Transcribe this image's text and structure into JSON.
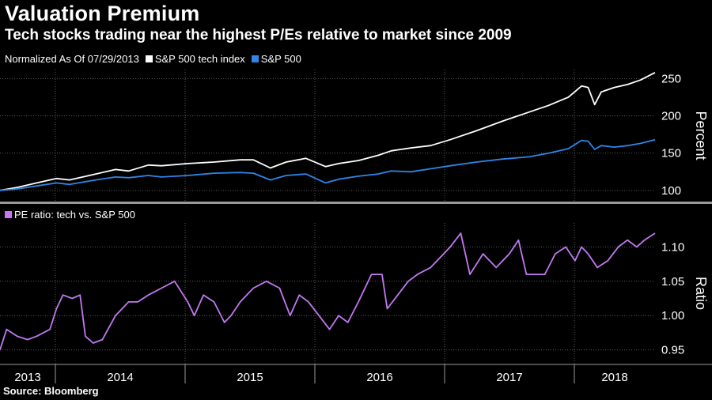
{
  "title": "Valuation Premium",
  "subtitle": "Tech stocks trading near the highest P/Es relative to market since 2009",
  "top_legend": {
    "note": "Normalized As Of 07/29/2013",
    "items": [
      {
        "label": "S&P 500 tech index",
        "color": "#ffffff"
      },
      {
        "label": "S&P 500",
        "color": "#2e86e8"
      }
    ]
  },
  "bottom_legend": {
    "items": [
      {
        "label": "PE ratio: tech vs. S&P 500",
        "color": "#c279f2"
      }
    ]
  },
  "source": "Source: Bloomberg",
  "chart_data": [
    {
      "type": "line",
      "ylabel": "Percent",
      "ylim": [
        85,
        262
      ],
      "yticks": [
        100,
        150,
        200,
        250
      ],
      "x_range": [
        2013.57,
        2018.56
      ],
      "grid": true,
      "series": [
        {
          "name": "S&P 500 tech index",
          "color": "#ffffff",
          "points": [
            [
              2013.57,
              100
            ],
            [
              2013.7,
              104
            ],
            [
              2013.85,
              110
            ],
            [
              2014.0,
              116
            ],
            [
              2014.1,
              114
            ],
            [
              2014.3,
              122
            ],
            [
              2014.45,
              128
            ],
            [
              2014.55,
              126
            ],
            [
              2014.7,
              134
            ],
            [
              2014.8,
              133
            ],
            [
              2015.0,
              136
            ],
            [
              2015.2,
              138
            ],
            [
              2015.4,
              141
            ],
            [
              2015.5,
              141
            ],
            [
              2015.63,
              130
            ],
            [
              2015.75,
              138
            ],
            [
              2015.9,
              143
            ],
            [
              2016.05,
              132
            ],
            [
              2016.15,
              136
            ],
            [
              2016.3,
              140
            ],
            [
              2016.45,
              147
            ],
            [
              2016.55,
              153
            ],
            [
              2016.7,
              157
            ],
            [
              2016.85,
              160
            ],
            [
              2017.0,
              168
            ],
            [
              2017.2,
              180
            ],
            [
              2017.4,
              193
            ],
            [
              2017.6,
              205
            ],
            [
              2017.75,
              214
            ],
            [
              2017.9,
              225
            ],
            [
              2018.0,
              240
            ],
            [
              2018.05,
              238
            ],
            [
              2018.1,
              215
            ],
            [
              2018.15,
              232
            ],
            [
              2018.25,
              238
            ],
            [
              2018.35,
              242
            ],
            [
              2018.45,
              248
            ],
            [
              2018.56,
              258
            ]
          ]
        },
        {
          "name": "S&P 500",
          "color": "#2e86e8",
          "points": [
            [
              2013.57,
              100
            ],
            [
              2013.7,
              102
            ],
            [
              2013.85,
              106
            ],
            [
              2014.0,
              110
            ],
            [
              2014.1,
              108
            ],
            [
              2014.3,
              114
            ],
            [
              2014.45,
              118
            ],
            [
              2014.55,
              117
            ],
            [
              2014.7,
              120
            ],
            [
              2014.8,
              118
            ],
            [
              2015.0,
              120
            ],
            [
              2015.2,
              123
            ],
            [
              2015.4,
              124
            ],
            [
              2015.5,
              123
            ],
            [
              2015.63,
              114
            ],
            [
              2015.75,
              120
            ],
            [
              2015.9,
              122
            ],
            [
              2016.05,
              110
            ],
            [
              2016.15,
              115
            ],
            [
              2016.3,
              119
            ],
            [
              2016.45,
              122
            ],
            [
              2016.55,
              126
            ],
            [
              2016.7,
              125
            ],
            [
              2016.85,
              129
            ],
            [
              2017.0,
              133
            ],
            [
              2017.2,
              138
            ],
            [
              2017.4,
              142
            ],
            [
              2017.6,
              145
            ],
            [
              2017.75,
              150
            ],
            [
              2017.9,
              156
            ],
            [
              2018.0,
              167
            ],
            [
              2018.05,
              166
            ],
            [
              2018.1,
              155
            ],
            [
              2018.15,
              160
            ],
            [
              2018.25,
              158
            ],
            [
              2018.35,
              160
            ],
            [
              2018.45,
              163
            ],
            [
              2018.56,
              168
            ]
          ]
        }
      ]
    },
    {
      "type": "line",
      "ylabel": "Ratio",
      "ylim": [
        0.93,
        1.135
      ],
      "yticks": [
        0.95,
        1.0,
        1.05,
        1.1
      ],
      "x_range": [
        2013.57,
        2018.56
      ],
      "xticks": [
        "2013",
        "2014",
        "2015",
        "2016",
        "2017",
        "2018"
      ],
      "grid": true,
      "series": [
        {
          "name": "PE ratio: tech vs. S&P 500",
          "color": "#c279f2",
          "points": [
            [
              2013.57,
              0.95
            ],
            [
              2013.62,
              0.98
            ],
            [
              2013.7,
              0.97
            ],
            [
              2013.78,
              0.965
            ],
            [
              2013.85,
              0.97
            ],
            [
              2013.95,
              0.98
            ],
            [
              2014.0,
              1.01
            ],
            [
              2014.05,
              1.03
            ],
            [
              2014.12,
              1.025
            ],
            [
              2014.18,
              1.03
            ],
            [
              2014.22,
              0.97
            ],
            [
              2014.28,
              0.96
            ],
            [
              2014.35,
              0.965
            ],
            [
              2014.45,
              1.0
            ],
            [
              2014.55,
              1.02
            ],
            [
              2014.62,
              1.02
            ],
            [
              2014.7,
              1.03
            ],
            [
              2014.8,
              1.04
            ],
            [
              2014.9,
              1.05
            ],
            [
              2015.0,
              1.02
            ],
            [
              2015.05,
              1.0
            ],
            [
              2015.12,
              1.03
            ],
            [
              2015.2,
              1.02
            ],
            [
              2015.28,
              0.99
            ],
            [
              2015.33,
              1.0
            ],
            [
              2015.4,
              1.02
            ],
            [
              2015.5,
              1.04
            ],
            [
              2015.6,
              1.05
            ],
            [
              2015.7,
              1.04
            ],
            [
              2015.78,
              1.0
            ],
            [
              2015.85,
              1.03
            ],
            [
              2015.92,
              1.02
            ],
            [
              2016.0,
              1.0
            ],
            [
              2016.08,
              0.98
            ],
            [
              2016.15,
              1.0
            ],
            [
              2016.22,
              0.99
            ],
            [
              2016.3,
              1.02
            ],
            [
              2016.4,
              1.06
            ],
            [
              2016.48,
              1.06
            ],
            [
              2016.52,
              1.01
            ],
            [
              2016.6,
              1.03
            ],
            [
              2016.68,
              1.05
            ],
            [
              2016.75,
              1.06
            ],
            [
              2016.85,
              1.07
            ],
            [
              2016.95,
              1.09
            ],
            [
              2017.0,
              1.1
            ],
            [
              2017.08,
              1.12
            ],
            [
              2017.15,
              1.06
            ],
            [
              2017.25,
              1.09
            ],
            [
              2017.35,
              1.07
            ],
            [
              2017.45,
              1.09
            ],
            [
              2017.52,
              1.11
            ],
            [
              2017.58,
              1.06
            ],
            [
              2017.65,
              1.06
            ],
            [
              2017.72,
              1.06
            ],
            [
              2017.8,
              1.09
            ],
            [
              2017.88,
              1.1
            ],
            [
              2017.95,
              1.08
            ],
            [
              2018.0,
              1.1
            ],
            [
              2018.05,
              1.09
            ],
            [
              2018.12,
              1.07
            ],
            [
              2018.2,
              1.08
            ],
            [
              2018.28,
              1.1
            ],
            [
              2018.35,
              1.11
            ],
            [
              2018.42,
              1.1
            ],
            [
              2018.48,
              1.11
            ],
            [
              2018.56,
              1.12
            ]
          ]
        }
      ]
    }
  ]
}
